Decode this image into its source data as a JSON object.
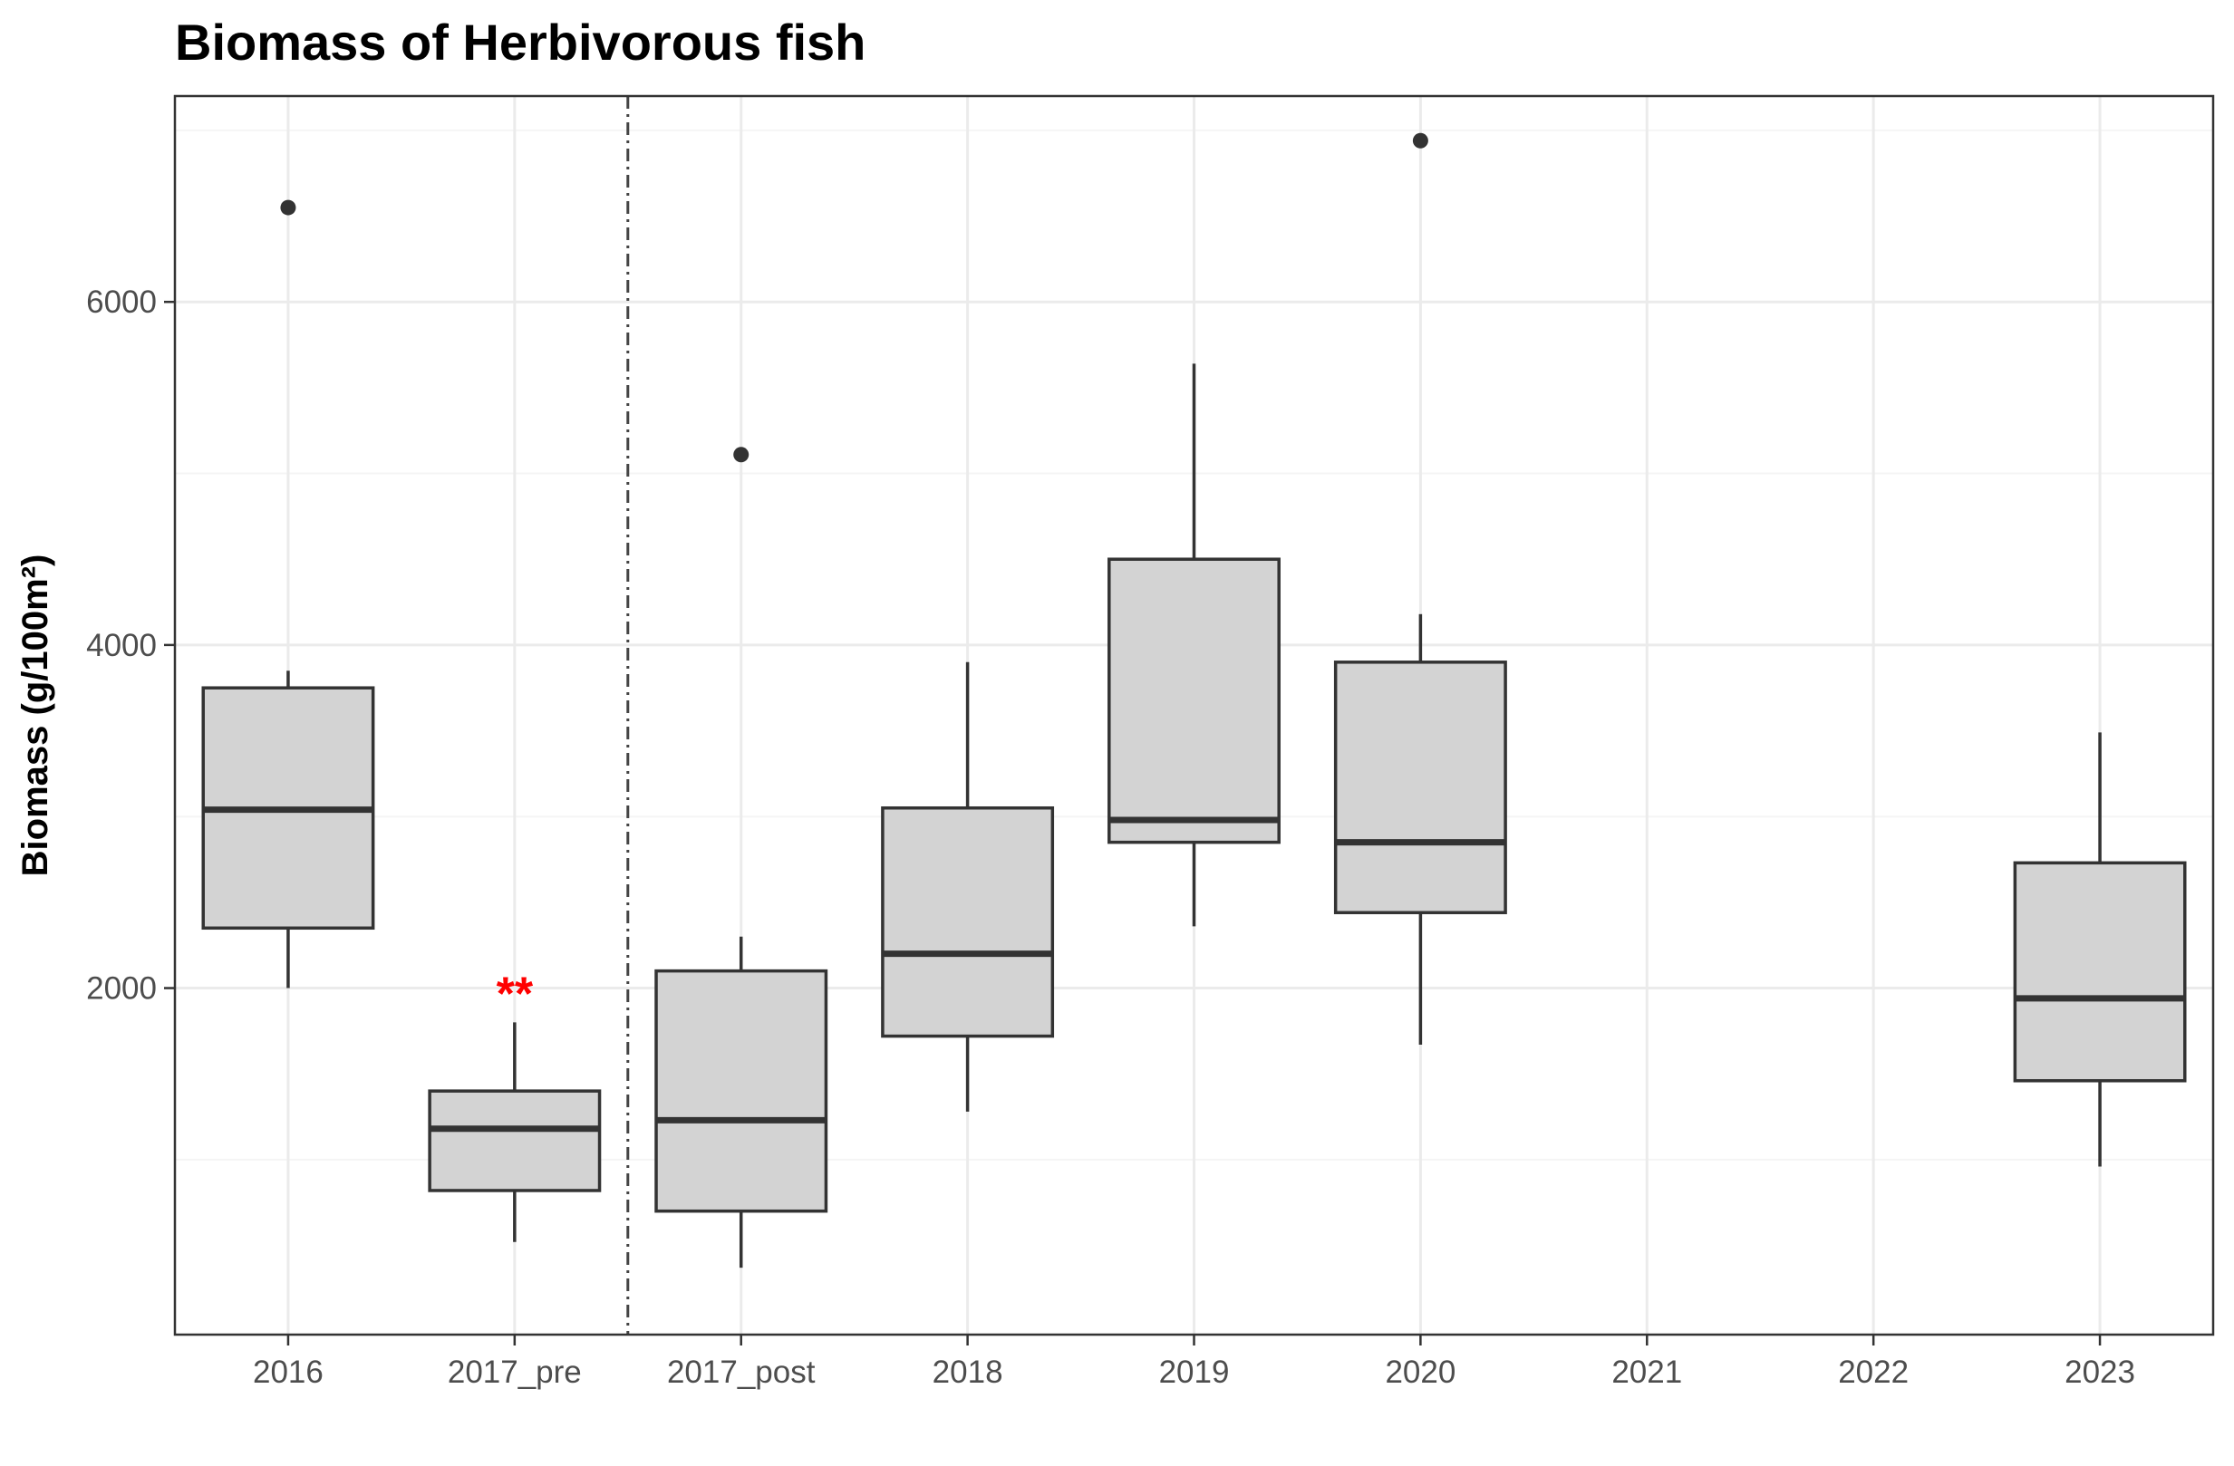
{
  "chart_data": {
    "type": "boxplot",
    "title": "Biomass of Herbivorous fish",
    "xlabel": "",
    "ylabel": "Biomass (g/100m²)",
    "ylim": [
      -20,
      7200
    ],
    "yticks": [
      2000,
      4000,
      6000
    ],
    "grid": true,
    "categories": [
      "2016",
      "2017_pre",
      "2017_post",
      "2018",
      "2019",
      "2020",
      "2021",
      "2022",
      "2023"
    ],
    "boxes": [
      {
        "category": "2016",
        "whisker_low": 2000,
        "q1": 2350,
        "median": 3040,
        "q3": 3750,
        "whisker_high": 3850,
        "outliers": [
          6550
        ]
      },
      {
        "category": "2017_pre",
        "whisker_low": 520,
        "q1": 820,
        "median": 1180,
        "q3": 1400,
        "whisker_high": 1800,
        "outliers": []
      },
      {
        "category": "2017_post",
        "whisker_low": 370,
        "q1": 700,
        "median": 1230,
        "q3": 2100,
        "whisker_high": 2300,
        "outliers": [
          5110
        ]
      },
      {
        "category": "2018",
        "whisker_low": 1280,
        "q1": 1720,
        "median": 2200,
        "q3": 3050,
        "whisker_high": 3900,
        "outliers": []
      },
      {
        "category": "2019",
        "whisker_low": 2360,
        "q1": 2850,
        "median": 2980,
        "q3": 4500,
        "whisker_high": 5640,
        "outliers": []
      },
      {
        "category": "2020",
        "whisker_low": 1670,
        "q1": 2440,
        "median": 2850,
        "q3": 3900,
        "whisker_high": 4180,
        "outliers": [
          6940
        ]
      },
      {
        "category": "2023",
        "whisker_low": 960,
        "q1": 1460,
        "median": 1940,
        "q3": 2730,
        "whisker_high": 3490,
        "outliers": []
      }
    ],
    "vline_between": [
      "2017_pre",
      "2017_post"
    ],
    "annotations": [
      {
        "category": "2017_pre",
        "text": "**",
        "y": 2000,
        "color": "#ff0000"
      }
    ],
    "colors": {
      "box_fill": "#d3d3d3",
      "box_stroke": "#333333",
      "grid": "#ebebeb",
      "panel_border": "#333333",
      "annotation": "#ff0000"
    }
  }
}
